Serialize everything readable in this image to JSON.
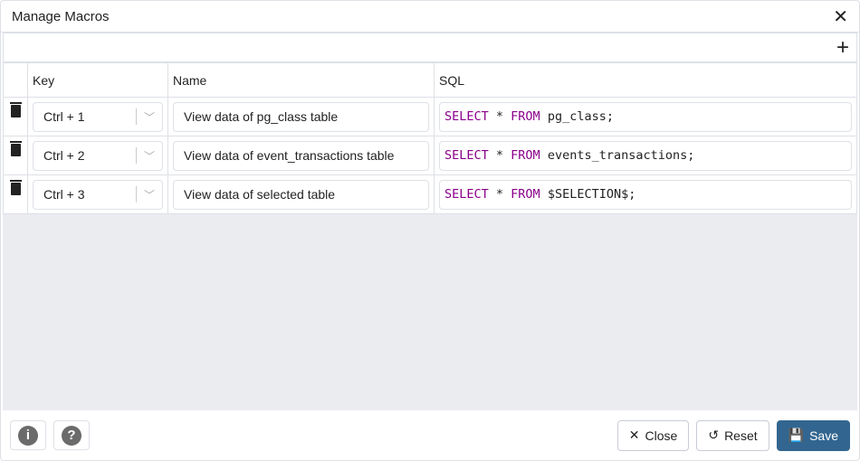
{
  "dialog": {
    "title": "Manage Macros"
  },
  "table": {
    "headers": [
      "Key",
      "Name",
      "SQL"
    ],
    "rows": [
      {
        "key": "Ctrl + 1",
        "name": "View data of pg_class table",
        "sql_kw1": "SELECT",
        "sql_mid": " * ",
        "sql_kw2": "FROM",
        "sql_rest": " pg_class;"
      },
      {
        "key": "Ctrl + 2",
        "name": "View data of event_transactions table",
        "sql_kw1": "SELECT",
        "sql_mid": " * ",
        "sql_kw2": "FROM",
        "sql_rest": " events_transactions;"
      },
      {
        "key": "Ctrl + 3",
        "name": "View data of selected table",
        "sql_kw1": "SELECT",
        "sql_mid": " * ",
        "sql_kw2": "FROM",
        "sql_rest": " $SELECTION$;"
      }
    ]
  },
  "footer": {
    "close": "Close",
    "reset": "Reset",
    "save": "Save"
  },
  "colors": {
    "accent": "#326690",
    "keyword": "#8b008b"
  }
}
